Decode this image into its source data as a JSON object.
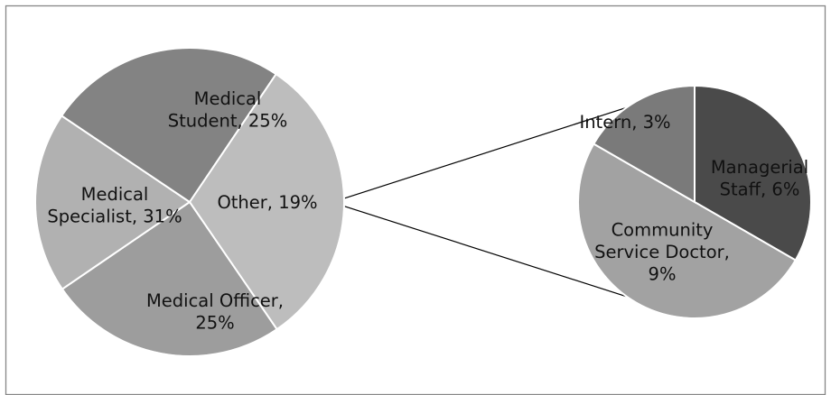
{
  "chart_data": {
    "type": "pie",
    "subtype": "pie-of-pie",
    "title": "",
    "main_pie": {
      "slices": [
        {
          "label_lines": [
            "Medical",
            "Student, 25%"
          ],
          "category": "Medical Student",
          "value": 25,
          "color": "#9d9d9d"
        },
        {
          "label_lines": [
            "Other, 19%"
          ],
          "category": "Other",
          "value": 19,
          "color": "#b1b1b1"
        },
        {
          "label_lines": [
            "Medical Officer,",
            "25%"
          ],
          "category": "Medical Officer",
          "value": 25,
          "color": "#838383"
        },
        {
          "label_lines": [
            "Medical",
            "Specialist, 31%"
          ],
          "category": "Medical Specialist",
          "value": 31,
          "color": "#bdbdbd"
        }
      ]
    },
    "secondary_pie": {
      "expands": "Other",
      "slices": [
        {
          "label_lines": [
            "Managerial",
            "Staff, 6%"
          ],
          "category": "Managerial Staff",
          "value": 6,
          "color": "#4a4a4a"
        },
        {
          "label_lines": [
            "Community",
            "Service Doctor,",
            "9%"
          ],
          "category": "Community Service Doctor",
          "value": 9,
          "color": "#a2a2a2"
        },
        {
          "label_lines": [
            "Intern, 3%"
          ],
          "category": "Intern",
          "value": 3,
          "color": "#7a7a7a"
        }
      ]
    },
    "legend": "none"
  }
}
